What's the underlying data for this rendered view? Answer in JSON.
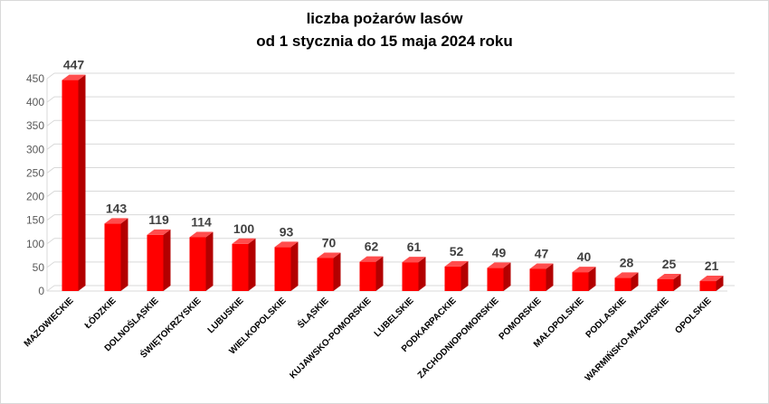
{
  "chart_data": {
    "type": "bar",
    "title": "liczba pożarów lasów",
    "subtitle": "od 1 stycznia do 15 maja 2024 roku",
    "categories": [
      "MAZOWIECKIE",
      "ŁÓDZKIE",
      "DOLNOŚLĄSKIE",
      "ŚWIĘTOKRZYSKIE",
      "LUBUSKIE",
      "WIELKOPOLSKIE",
      "ŚLĄSKIE",
      "KUJAWSKO-POMORSKIE",
      "LUBELSKIE",
      "PODKARPACKIE",
      "ZACHODNIOPOMORSKIE",
      "POMORSKIE",
      "MAŁOPOLSKIE",
      "PODLASKIE",
      "WARMIŃSKO-MAZURSKIE",
      "OPOLSKIE"
    ],
    "values": [
      447,
      143,
      119,
      114,
      100,
      93,
      70,
      62,
      61,
      52,
      49,
      47,
      40,
      28,
      25,
      21
    ],
    "ylim": [
      0,
      450
    ],
    "yticks": [
      0,
      50,
      100,
      150,
      200,
      250,
      300,
      350,
      400,
      450
    ],
    "grid": true,
    "colors": {
      "bar": "#ff0000",
      "bar_side": "#b30000",
      "bar_top": "#ff4d4d",
      "grid": "#d9d9d9"
    }
  }
}
